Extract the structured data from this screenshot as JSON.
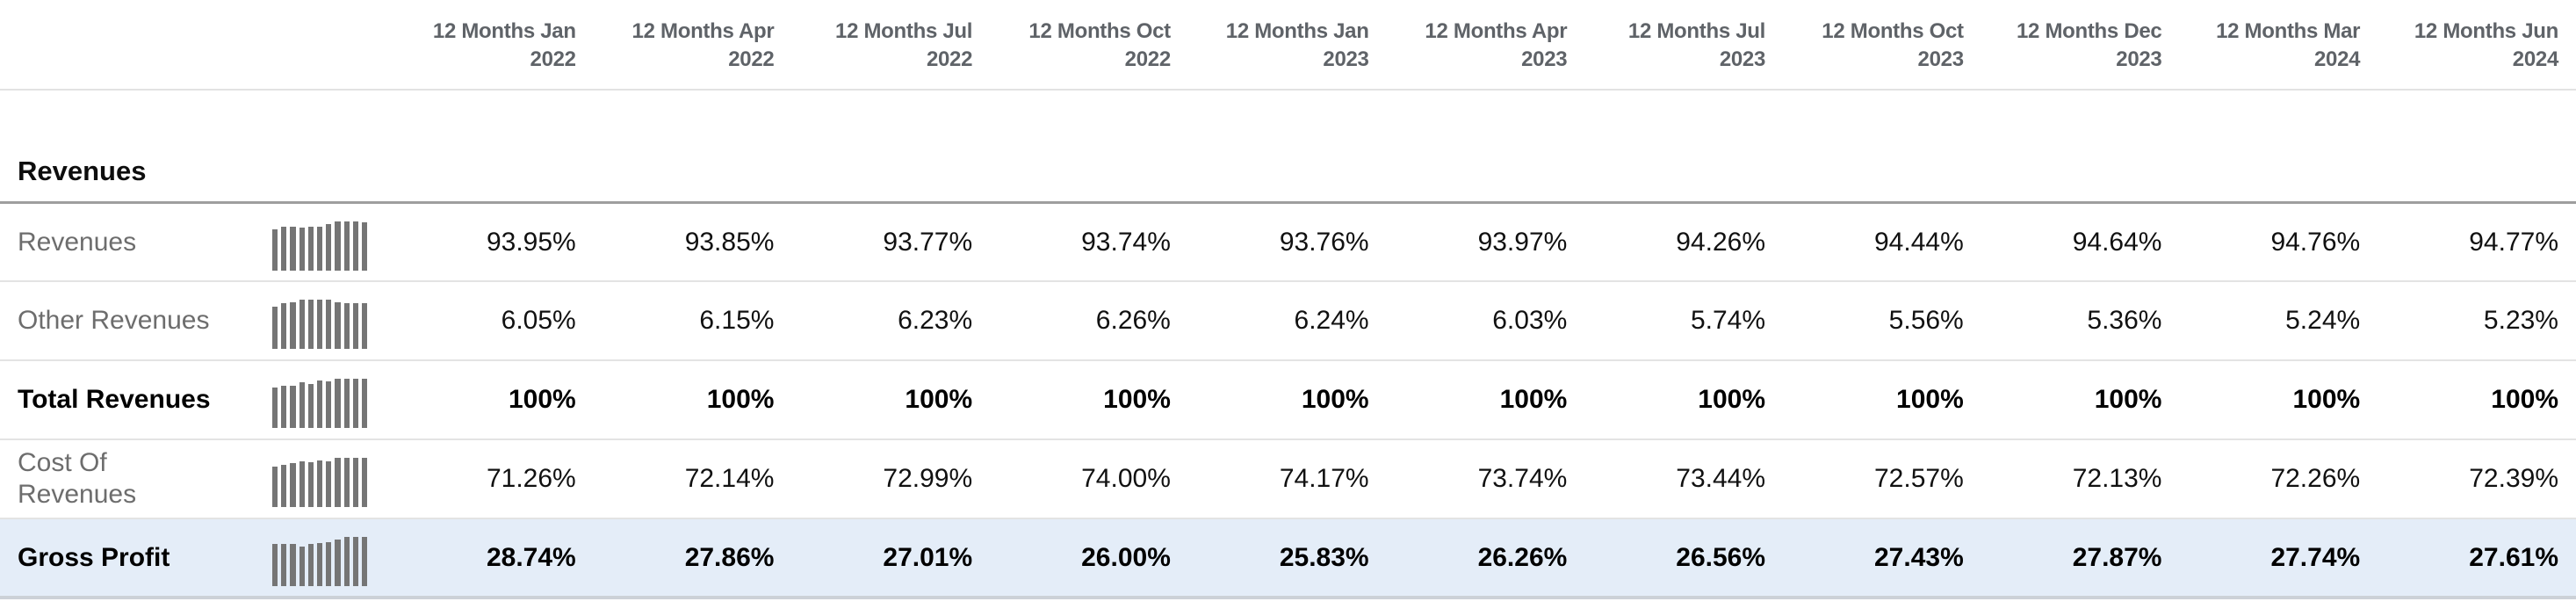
{
  "colors": {
    "highlight_row_bg": "#e4edf8",
    "spark_bar": "#757575",
    "section_divider": "#9e9e9e",
    "row_divider": "#e3e3e3",
    "bottom_border": "#ccd1d7",
    "header_text": "#5f6368",
    "label_text": "#6d6d6d",
    "value_text": "#111111"
  },
  "table": {
    "section_title": "Revenues",
    "columns": [
      {
        "line1": "12 Months Jan",
        "line2": "2022"
      },
      {
        "line1": "12 Months Apr",
        "line2": "2022"
      },
      {
        "line1": "12 Months Jul",
        "line2": "2022"
      },
      {
        "line1": "12 Months Oct",
        "line2": "2022"
      },
      {
        "line1": "12 Months Jan",
        "line2": "2023"
      },
      {
        "line1": "12 Months Apr",
        "line2": "2023"
      },
      {
        "line1": "12 Months Jul",
        "line2": "2023"
      },
      {
        "line1": "12 Months Oct",
        "line2": "2023"
      },
      {
        "line1": "12 Months Dec",
        "line2": "2023"
      },
      {
        "line1": "12 Months Mar",
        "line2": "2024"
      },
      {
        "line1": "12 Months Jun",
        "line2": "2024"
      }
    ],
    "rows": [
      {
        "id": "revenues",
        "label": "Revenues",
        "style": "normal",
        "spark": [
          0.84,
          0.89,
          0.89,
          0.88,
          0.9,
          0.9,
          0.95,
          1.0,
          1.0,
          1.0,
          0.99
        ],
        "values": [
          "93.95%",
          "93.85%",
          "93.77%",
          "93.74%",
          "93.76%",
          "93.97%",
          "94.26%",
          "94.44%",
          "94.64%",
          "94.76%",
          "94.77%"
        ]
      },
      {
        "id": "other-revenues",
        "label": "Other Revenues",
        "style": "normal",
        "spark": [
          0.85,
          0.93,
          0.95,
          1.0,
          1.0,
          1.0,
          1.0,
          0.94,
          0.92,
          0.93,
          0.93
        ],
        "values": [
          "6.05%",
          "6.15%",
          "6.23%",
          "6.26%",
          "6.24%",
          "6.03%",
          "5.74%",
          "5.56%",
          "5.36%",
          "5.24%",
          "5.23%"
        ]
      },
      {
        "id": "total-revenues",
        "label": "Total Revenues",
        "style": "bold",
        "spark": [
          0.83,
          0.85,
          0.86,
          0.92,
          0.89,
          0.96,
          0.94,
          1.0,
          1.0,
          1.0,
          1.0
        ],
        "values": [
          "100%",
          "100%",
          "100%",
          "100%",
          "100%",
          "100%",
          "100%",
          "100%",
          "100%",
          "100%",
          "100%"
        ]
      },
      {
        "id": "cost-of-revenues",
        "label": "Cost Of Revenues",
        "style": "normal",
        "spark": [
          0.82,
          0.86,
          0.9,
          0.93,
          0.91,
          0.94,
          0.93,
          1.0,
          1.0,
          1.0,
          1.0
        ],
        "values": [
          "71.26%",
          "72.14%",
          "72.99%",
          "74.00%",
          "74.17%",
          "73.74%",
          "73.44%",
          "72.57%",
          "72.13%",
          "72.26%",
          "72.39%"
        ]
      },
      {
        "id": "gross-profit",
        "label": "Gross Profit",
        "style": "bold-highlight",
        "spark": [
          0.86,
          0.86,
          0.85,
          0.8,
          0.85,
          0.87,
          0.89,
          0.94,
          1.0,
          1.0,
          1.0
        ],
        "values": [
          "28.74%",
          "27.86%",
          "27.01%",
          "26.00%",
          "25.83%",
          "26.26%",
          "26.56%",
          "27.43%",
          "27.87%",
          "27.74%",
          "27.61%"
        ]
      }
    ]
  }
}
